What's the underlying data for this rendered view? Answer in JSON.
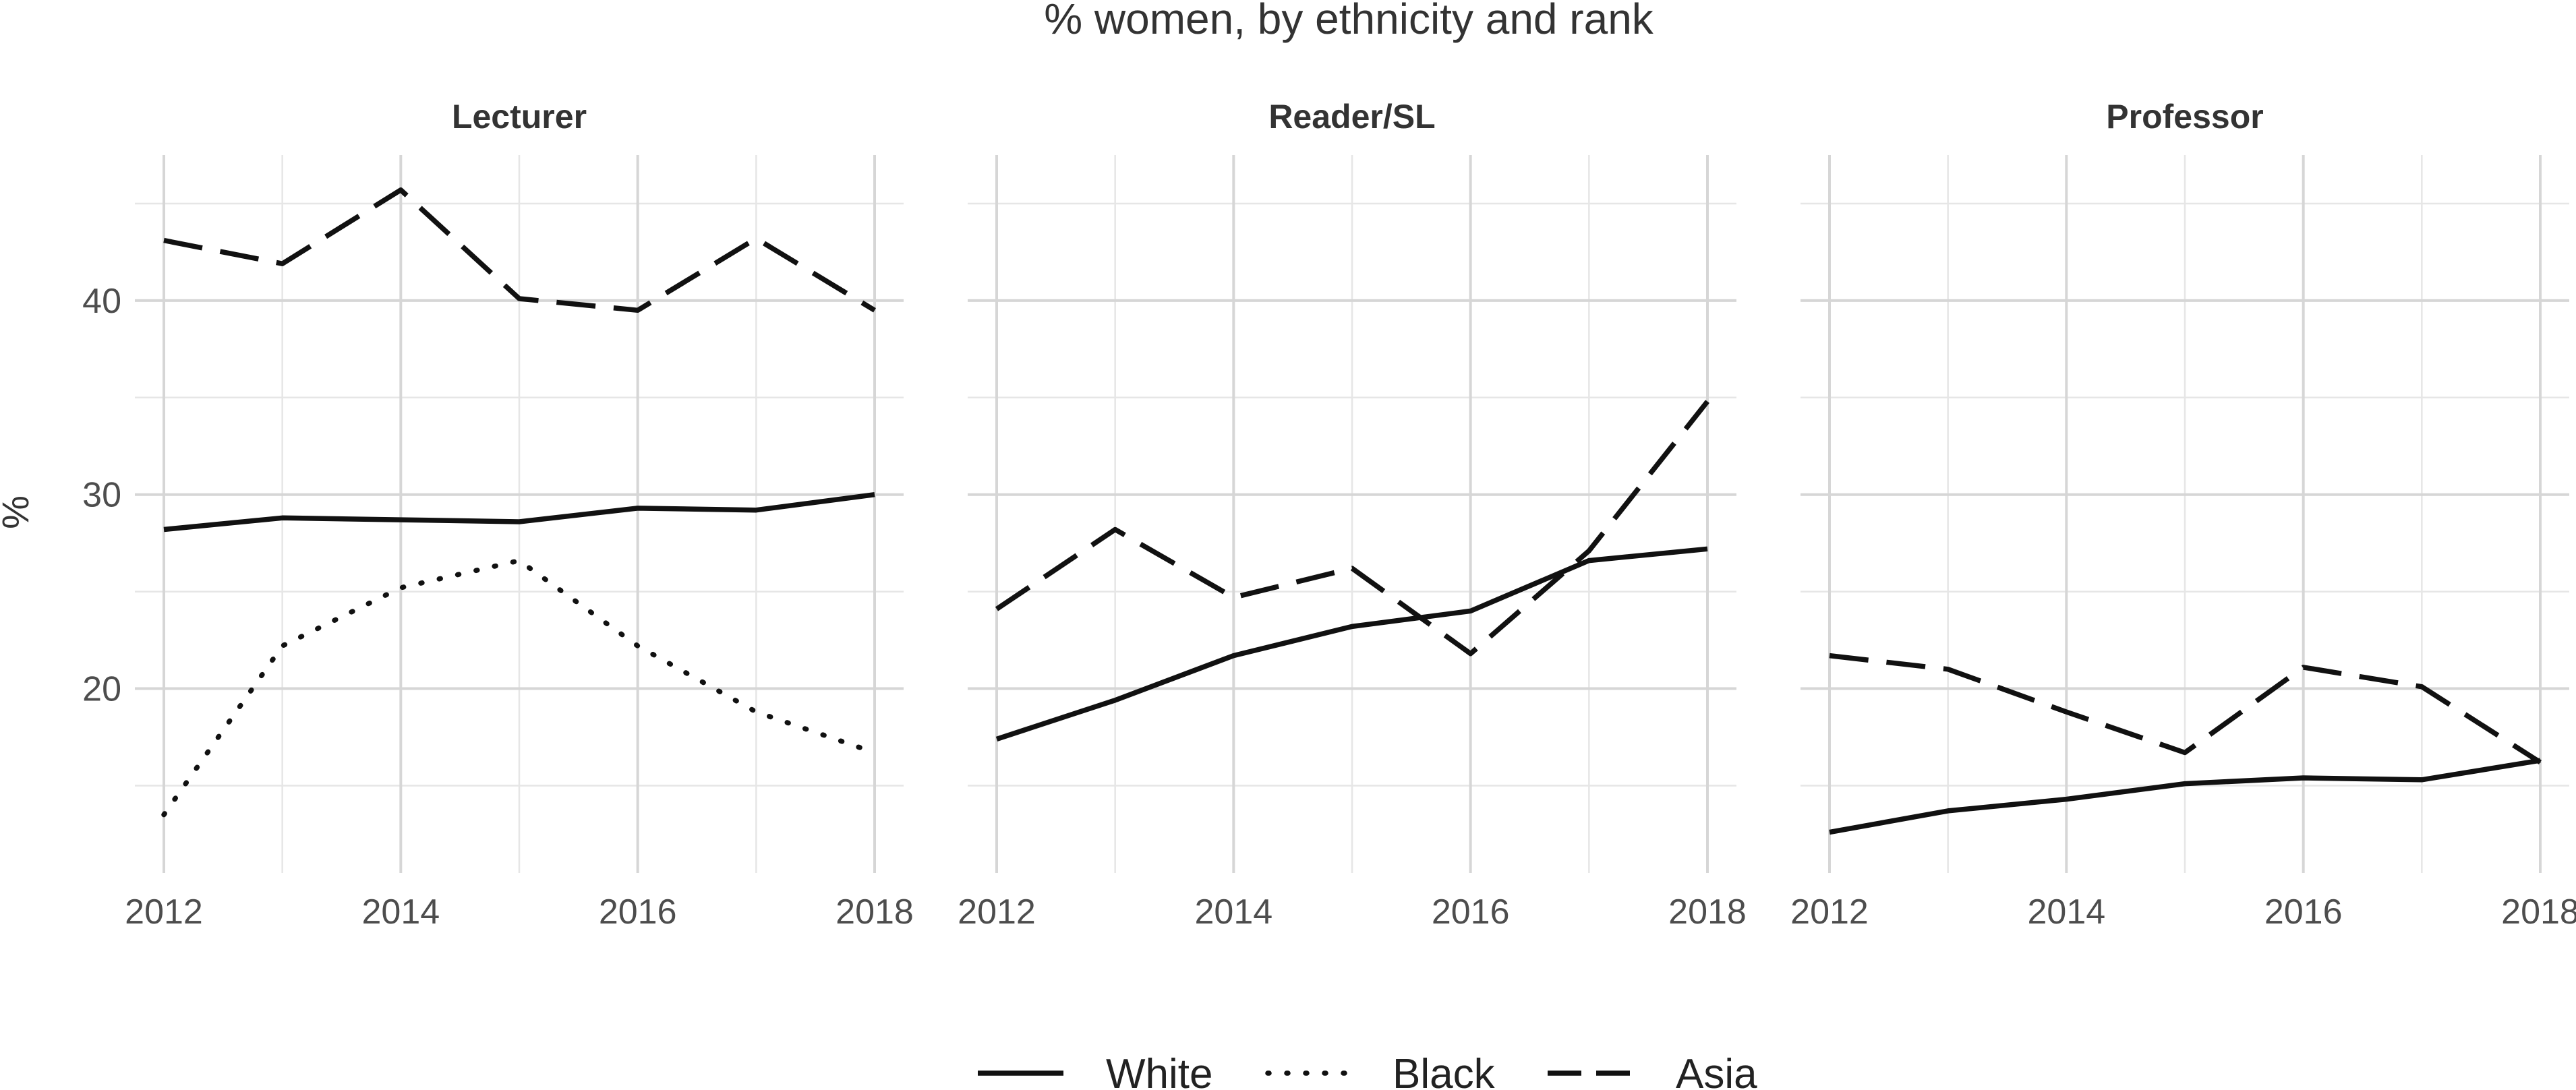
{
  "chart_data": {
    "type": "line",
    "title": "% women, by ethnicity and rank",
    "ylabel": "%",
    "xlabel": "",
    "x": [
      2012,
      2013,
      2014,
      2015,
      2016,
      2017,
      2018
    ],
    "x_ticks": [
      2012,
      2014,
      2016,
      2018
    ],
    "y_ticks": [
      20,
      30,
      40
    ],
    "ylim": [
      10.5,
      47.5
    ],
    "grid": true,
    "legend_position": "bottom",
    "legend": [
      {
        "name": "White",
        "dash": "solid"
      },
      {
        "name": "Black",
        "dash": "dotted"
      },
      {
        "name": "Asia",
        "dash": "dashed"
      }
    ],
    "facets": [
      {
        "name": "Lecturer",
        "series": [
          {
            "name": "White",
            "values": [
              28.2,
              28.8,
              28.7,
              28.6,
              29.3,
              29.2,
              30.0
            ]
          },
          {
            "name": "Black",
            "values": [
              13.5,
              22.2,
              25.2,
              26.6,
              22.2,
              18.8,
              16.7
            ]
          },
          {
            "name": "Asia",
            "values": [
              43.1,
              41.9,
              45.7,
              40.1,
              39.5,
              43.2,
              39.5
            ]
          }
        ]
      },
      {
        "name": "Reader/SL",
        "series": [
          {
            "name": "White",
            "values": [
              17.4,
              19.4,
              21.7,
              23.2,
              24.0,
              26.6,
              27.2
            ]
          },
          {
            "name": "Asia",
            "values": [
              24.1,
              28.2,
              24.7,
              26.2,
              21.8,
              27.1,
              34.8
            ]
          }
        ]
      },
      {
        "name": "Professor",
        "series": [
          {
            "name": "White",
            "values": [
              12.6,
              13.7,
              14.3,
              15.1,
              15.4,
              15.3,
              16.3
            ]
          },
          {
            "name": "Asia",
            "values": [
              21.7,
              21.0,
              18.8,
              16.7,
              21.1,
              20.1,
              16.2
            ]
          }
        ]
      }
    ]
  }
}
